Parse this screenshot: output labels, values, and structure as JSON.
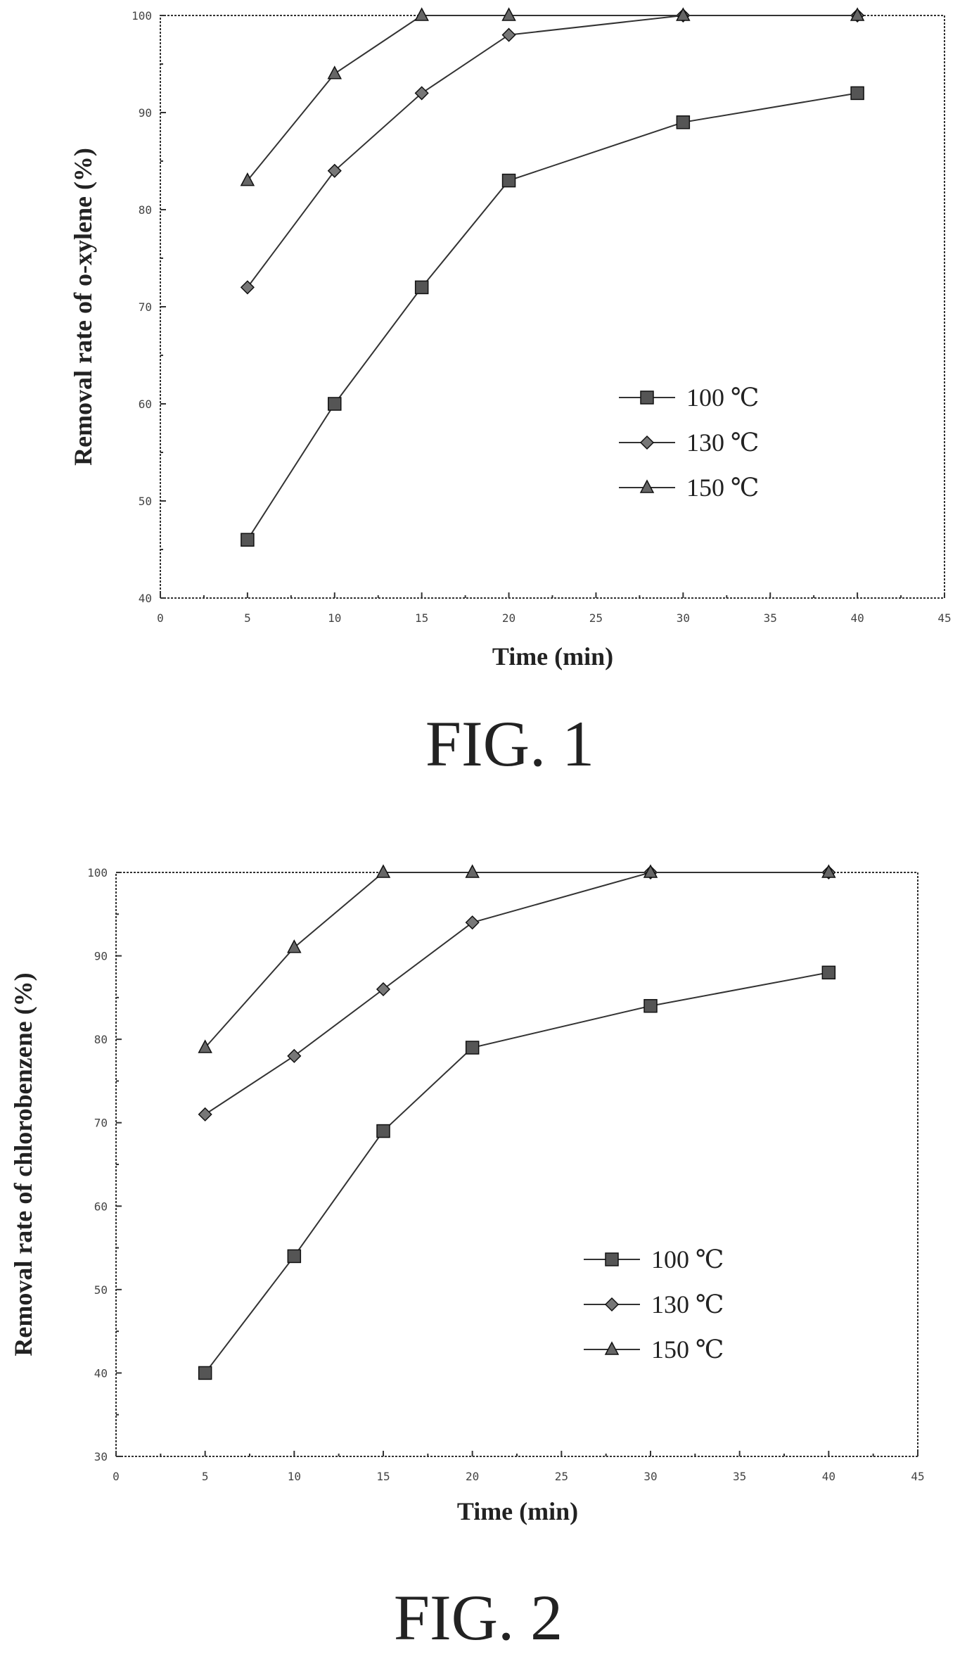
{
  "chart_data": [
    {
      "type": "line",
      "caption": "FIG. 1",
      "xlabel": "Time (min)",
      "ylabel": "Removal rate of o-xylene (%)",
      "xlim": [
        0,
        45
      ],
      "ylim": [
        40,
        100
      ],
      "x_ticks": [
        "0",
        "5",
        "10",
        "15",
        "20",
        "25",
        "30",
        "35",
        "40",
        "45"
      ],
      "y_ticks": [
        "40",
        "50",
        "60",
        "70",
        "80",
        "90",
        "100"
      ],
      "legend_position": "lower-right",
      "grid": false,
      "series": [
        {
          "name": "100 ℃",
          "marker": "square",
          "x": [
            5,
            10,
            15,
            20,
            30,
            40
          ],
          "y": [
            46,
            60,
            72,
            83,
            89,
            92
          ]
        },
        {
          "name": "130 ℃",
          "marker": "diamond",
          "x": [
            5,
            10,
            15,
            20,
            30,
            40
          ],
          "y": [
            72,
            84,
            92,
            98,
            100,
            100
          ]
        },
        {
          "name": "150 ℃",
          "marker": "triangle",
          "x": [
            5,
            10,
            15,
            20,
            30,
            40
          ],
          "y": [
            83,
            94,
            100,
            100,
            100,
            100
          ]
        }
      ]
    },
    {
      "type": "line",
      "caption": "FIG. 2",
      "xlabel": "Time (min)",
      "ylabel": "Removal rate of chlorobenzene (%)",
      "xlim": [
        0,
        45
      ],
      "ylim": [
        30,
        100
      ],
      "x_ticks": [
        "0",
        "5",
        "10",
        "15",
        "20",
        "25",
        "30",
        "35",
        "40",
        "45"
      ],
      "y_ticks": [
        "30",
        "40",
        "50",
        "60",
        "70",
        "80",
        "90",
        "100"
      ],
      "legend_position": "lower-right",
      "grid": false,
      "series": [
        {
          "name": "100 ℃",
          "marker": "square",
          "x": [
            5,
            10,
            15,
            20,
            30,
            40
          ],
          "y": [
            40,
            54,
            69,
            79,
            84,
            88
          ]
        },
        {
          "name": "130 ℃",
          "marker": "diamond",
          "x": [
            5,
            10,
            15,
            20,
            30,
            40
          ],
          "y": [
            71,
            78,
            86,
            94,
            100,
            100
          ]
        },
        {
          "name": "150 ℃",
          "marker": "triangle",
          "x": [
            5,
            10,
            15,
            20,
            30,
            40
          ],
          "y": [
            79,
            91,
            100,
            100,
            100,
            100
          ]
        }
      ]
    }
  ]
}
